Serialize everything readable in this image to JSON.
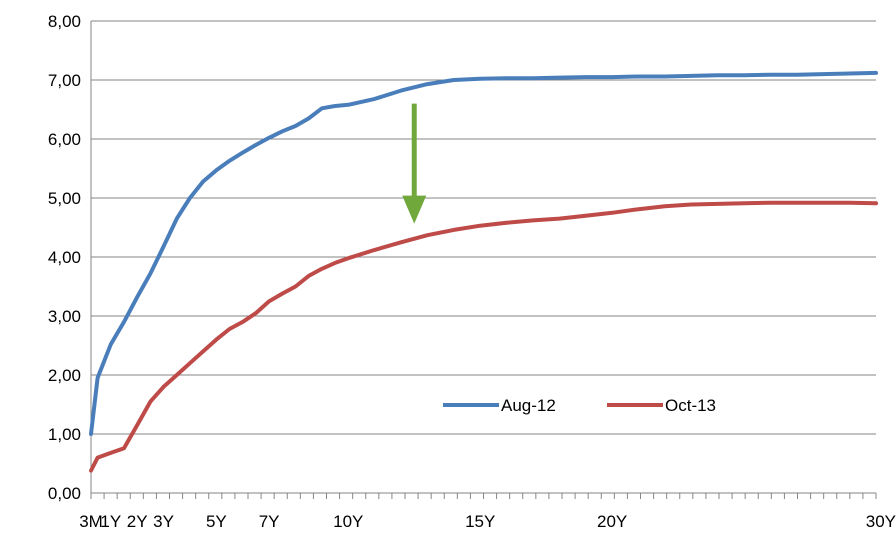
{
  "chart_data": {
    "type": "line",
    "title": "",
    "xlabel": "",
    "ylabel": "",
    "ylim": [
      0,
      8
    ],
    "y_ticks": [
      "0,00",
      "1,00",
      "2,00",
      "3,00",
      "4,00",
      "5,00",
      "6,00",
      "7,00",
      "8,00"
    ],
    "x_tick_labels": [
      {
        "label": "3M",
        "x": 0.25
      },
      {
        "label": "1Y",
        "x": 1
      },
      {
        "label": "2Y",
        "x": 2
      },
      {
        "label": "3Y",
        "x": 3
      },
      {
        "label": "5Y",
        "x": 5
      },
      {
        "label": "7Y",
        "x": 7
      },
      {
        "label": "10Y",
        "x": 10
      },
      {
        "label": "15Y",
        "x": 15
      },
      {
        "label": "20Y",
        "x": 20
      },
      {
        "label": "30Y",
        "x": 30
      }
    ],
    "xlim": [
      0.25,
      30
    ],
    "grid": "horizontal",
    "legend_position": "bottom-right",
    "series": [
      {
        "name": "Aug-12",
        "color": "#4a7ebb",
        "x": [
          0.25,
          0.5,
          1,
          1.5,
          2,
          2.5,
          3,
          3.5,
          4,
          4.5,
          5,
          5.5,
          6,
          6.5,
          7,
          7.5,
          8,
          8.5,
          9,
          9.5,
          10,
          11,
          12,
          13,
          14,
          15,
          16,
          17,
          18,
          19,
          20,
          21,
          22,
          23,
          24,
          25,
          26,
          27,
          28,
          29,
          30
        ],
        "values": [
          1.0,
          1.95,
          2.52,
          2.9,
          3.32,
          3.72,
          4.18,
          4.65,
          5.0,
          5.28,
          5.47,
          5.63,
          5.77,
          5.9,
          6.02,
          6.13,
          6.22,
          6.35,
          6.52,
          6.56,
          6.58,
          6.68,
          6.82,
          6.93,
          7.0,
          7.02,
          7.03,
          7.03,
          7.04,
          7.05,
          7.05,
          7.06,
          7.06,
          7.07,
          7.08,
          7.08,
          7.09,
          7.09,
          7.1,
          7.11,
          7.12
        ]
      },
      {
        "name": "Oct-13",
        "color": "#be4b48",
        "x": [
          0.25,
          0.5,
          1,
          1.5,
          2,
          2.5,
          3,
          3.5,
          4,
          4.5,
          5,
          5.5,
          6,
          6.5,
          7,
          7.5,
          8,
          8.5,
          9,
          9.5,
          10,
          11,
          12,
          13,
          14,
          15,
          16,
          17,
          18,
          19,
          20,
          21,
          22,
          23,
          24,
          25,
          26,
          27,
          28,
          29,
          30
        ],
        "values": [
          0.38,
          0.6,
          0.68,
          0.76,
          1.15,
          1.55,
          1.8,
          2.0,
          2.2,
          2.4,
          2.6,
          2.78,
          2.9,
          3.05,
          3.25,
          3.38,
          3.5,
          3.68,
          3.8,
          3.9,
          3.98,
          4.12,
          4.25,
          4.37,
          4.46,
          4.53,
          4.58,
          4.62,
          4.65,
          4.7,
          4.75,
          4.81,
          4.86,
          4.89,
          4.9,
          4.91,
          4.92,
          4.92,
          4.92,
          4.92,
          4.91
        ]
      }
    ],
    "annotations": [
      {
        "type": "arrow",
        "direction": "down",
        "color": "#70a83b",
        "x": 12.5,
        "from": 6.6,
        "to": 4.6
      }
    ]
  }
}
